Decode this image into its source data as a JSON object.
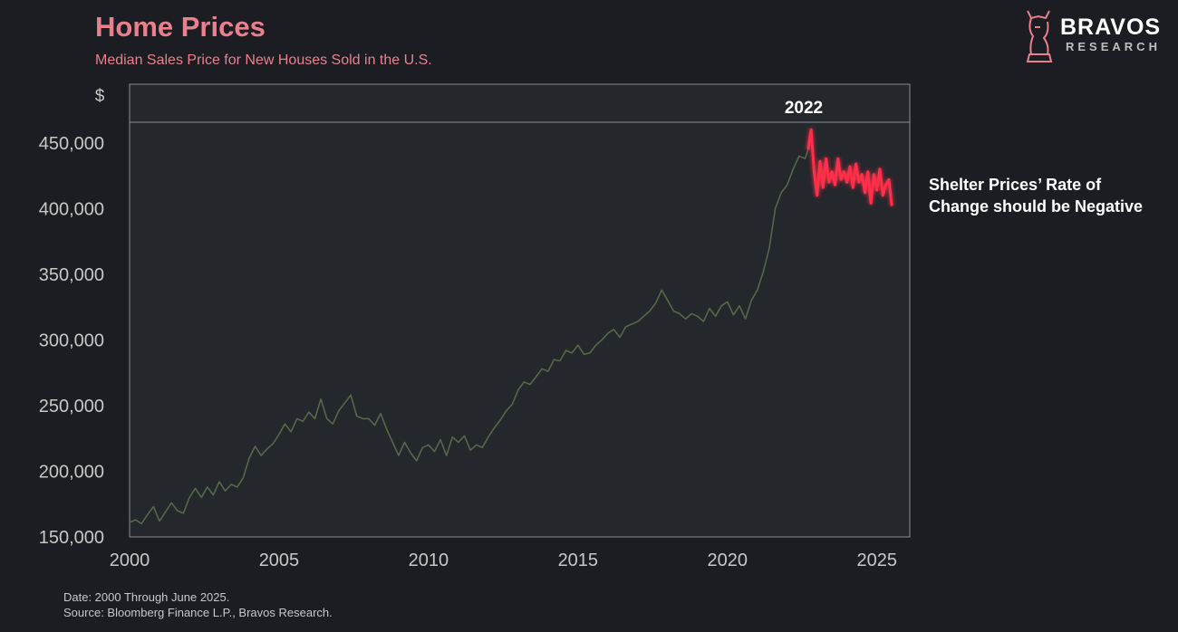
{
  "header": {
    "title": "Home Prices",
    "subtitle": "Median Sales Price for New Houses Sold in the U.S."
  },
  "logo": {
    "word": "BRAVOS",
    "sub": "RESEARCH"
  },
  "annotation": "Shelter Prices’ Rate of\nChange should be Negative",
  "footnotes": {
    "date": "Date: 2000 Through June 2025.",
    "source": "Source: Bloomberg Finance L.P., Bravos Research."
  },
  "colors": {
    "background": "#1b1d22",
    "plot_area": "#24272c",
    "title": "#e8818d",
    "main_series": "#56684a",
    "highlight_series": "#ff2d48",
    "axis_text": "#c8c8c8"
  },
  "chart_data": {
    "type": "line",
    "title": "Home Prices",
    "subtitle": "Median Sales Price for New Houses Sold in the U.S.",
    "ylabel": "$",
    "xlabel": "",
    "xlim": [
      2000,
      2026.1
    ],
    "ylim": [
      150000,
      465000
    ],
    "x_ticks": [
      2000,
      2005,
      2010,
      2015,
      2020,
      2025
    ],
    "y_ticks": [
      150000,
      200000,
      250000,
      300000,
      350000,
      400000,
      450000
    ],
    "y_tick_labels": [
      "150,000",
      "200,000",
      "250,000",
      "300,000",
      "350,000",
      "400,000",
      "450,000"
    ],
    "highlight_label": "2022",
    "grid": false,
    "series": [
      {
        "values_xy": [
          [
            2000.0,
            161000
          ],
          [
            2000.2,
            163000
          ],
          [
            2000.4,
            160000
          ],
          [
            2000.6,
            167000
          ],
          [
            2000.8,
            173000
          ],
          [
            2001.0,
            162000
          ],
          [
            2001.2,
            169000
          ],
          [
            2001.4,
            176000
          ],
          [
            2001.6,
            170000
          ],
          [
            2001.8,
            168000
          ],
          [
            2002.0,
            180000
          ],
          [
            2002.2,
            187000
          ],
          [
            2002.4,
            180000
          ],
          [
            2002.6,
            188000
          ],
          [
            2002.8,
            182000
          ],
          [
            2003.0,
            192000
          ],
          [
            2003.2,
            185000
          ],
          [
            2003.4,
            190000
          ],
          [
            2003.6,
            188000
          ],
          [
            2003.8,
            195000
          ],
          [
            2004.0,
            210000
          ],
          [
            2004.2,
            219000
          ],
          [
            2004.4,
            212000
          ],
          [
            2004.6,
            217000
          ],
          [
            2004.8,
            221000
          ],
          [
            2005.0,
            228000
          ],
          [
            2005.2,
            236000
          ],
          [
            2005.4,
            230000
          ],
          [
            2005.6,
            240000
          ],
          [
            2005.8,
            238000
          ],
          [
            2006.0,
            245000
          ],
          [
            2006.2,
            240000
          ],
          [
            2006.4,
            255000
          ],
          [
            2006.6,
            240000
          ],
          [
            2006.8,
            236000
          ],
          [
            2007.0,
            246000
          ],
          [
            2007.2,
            252000
          ],
          [
            2007.4,
            258000
          ],
          [
            2007.6,
            242000
          ],
          [
            2007.8,
            240000
          ],
          [
            2008.0,
            240000
          ],
          [
            2008.2,
            235000
          ],
          [
            2008.4,
            244000
          ],
          [
            2008.6,
            232000
          ],
          [
            2008.8,
            222000
          ],
          [
            2009.0,
            212000
          ],
          [
            2009.2,
            222000
          ],
          [
            2009.4,
            214000
          ],
          [
            2009.6,
            208000
          ],
          [
            2009.8,
            218000
          ],
          [
            2010.0,
            220000
          ],
          [
            2010.2,
            215000
          ],
          [
            2010.4,
            224000
          ],
          [
            2010.6,
            212000
          ],
          [
            2010.8,
            226000
          ],
          [
            2011.0,
            222000
          ],
          [
            2011.2,
            227000
          ],
          [
            2011.4,
            216000
          ],
          [
            2011.6,
            220000
          ],
          [
            2011.8,
            218000
          ],
          [
            2012.0,
            226000
          ],
          [
            2012.2,
            233000
          ],
          [
            2012.4,
            239000
          ],
          [
            2012.6,
            246000
          ],
          [
            2012.8,
            251000
          ],
          [
            2013.0,
            262000
          ],
          [
            2013.2,
            268000
          ],
          [
            2013.4,
            266000
          ],
          [
            2013.6,
            272000
          ],
          [
            2013.8,
            278000
          ],
          [
            2014.0,
            276000
          ],
          [
            2014.2,
            285000
          ],
          [
            2014.4,
            284000
          ],
          [
            2014.6,
            292000
          ],
          [
            2014.8,
            290000
          ],
          [
            2015.0,
            296000
          ],
          [
            2015.2,
            289000
          ],
          [
            2015.4,
            290000
          ],
          [
            2015.6,
            296000
          ],
          [
            2015.8,
            300000
          ],
          [
            2016.0,
            305000
          ],
          [
            2016.2,
            308000
          ],
          [
            2016.4,
            302000
          ],
          [
            2016.6,
            310000
          ],
          [
            2016.8,
            312000
          ],
          [
            2017.0,
            314000
          ],
          [
            2017.2,
            318000
          ],
          [
            2017.4,
            322000
          ],
          [
            2017.6,
            328000
          ],
          [
            2017.8,
            338000
          ],
          [
            2018.0,
            330000
          ],
          [
            2018.2,
            322000
          ],
          [
            2018.4,
            320000
          ],
          [
            2018.6,
            316000
          ],
          [
            2018.8,
            320000
          ],
          [
            2019.0,
            318000
          ],
          [
            2019.2,
            314000
          ],
          [
            2019.4,
            324000
          ],
          [
            2019.6,
            318000
          ],
          [
            2019.8,
            326000
          ],
          [
            2020.0,
            329000
          ],
          [
            2020.2,
            319000
          ],
          [
            2020.4,
            326000
          ],
          [
            2020.6,
            316000
          ],
          [
            2020.8,
            330000
          ],
          [
            2021.0,
            338000
          ],
          [
            2021.2,
            352000
          ],
          [
            2021.4,
            370000
          ],
          [
            2021.6,
            400000
          ],
          [
            2021.8,
            412000
          ],
          [
            2022.0,
            418000
          ],
          [
            2022.2,
            430000
          ],
          [
            2022.4,
            440000
          ],
          [
            2022.6,
            438000
          ],
          [
            2022.7,
            445000
          ]
        ]
      },
      {
        "highlight": true,
        "values_xy": [
          [
            2022.7,
            445000
          ],
          [
            2022.8,
            460000
          ],
          [
            2022.9,
            428000
          ],
          [
            2023.0,
            410000
          ],
          [
            2023.1,
            436000
          ],
          [
            2023.2,
            416000
          ],
          [
            2023.3,
            438000
          ],
          [
            2023.4,
            420000
          ],
          [
            2023.5,
            428000
          ],
          [
            2023.6,
            418000
          ],
          [
            2023.7,
            438000
          ],
          [
            2023.8,
            422000
          ],
          [
            2023.9,
            428000
          ],
          [
            2024.0,
            420000
          ],
          [
            2024.1,
            432000
          ],
          [
            2024.2,
            416000
          ],
          [
            2024.3,
            434000
          ],
          [
            2024.4,
            420000
          ],
          [
            2024.5,
            426000
          ],
          [
            2024.6,
            412000
          ],
          [
            2024.7,
            428000
          ],
          [
            2024.8,
            404000
          ],
          [
            2024.9,
            426000
          ],
          [
            2025.0,
            414000
          ],
          [
            2025.1,
            430000
          ],
          [
            2025.2,
            410000
          ],
          [
            2025.3,
            418000
          ],
          [
            2025.4,
            422000
          ],
          [
            2025.5,
            402000
          ]
        ]
      }
    ]
  }
}
